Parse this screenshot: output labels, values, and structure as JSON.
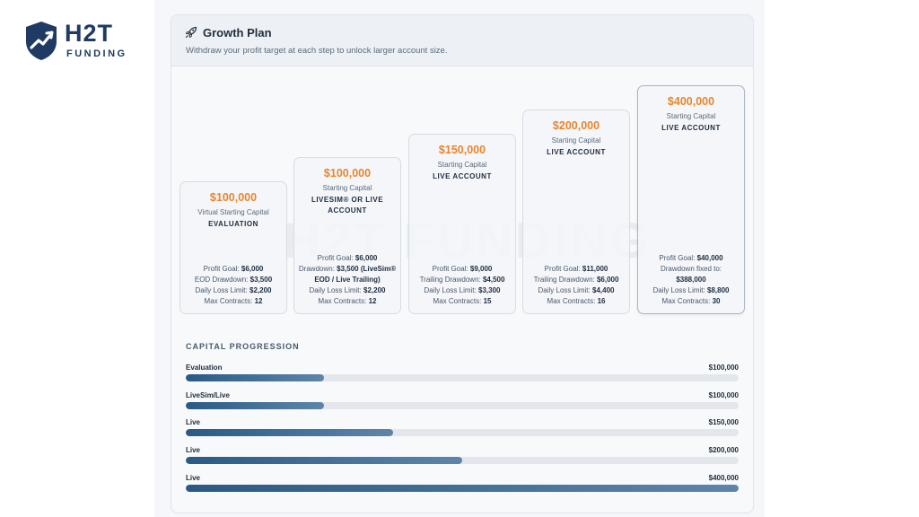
{
  "logo": {
    "line1": "H2T",
    "line2": "FUNDING",
    "icon": "shield-chart-icon"
  },
  "plan": {
    "title": "Growth Plan",
    "title_icon": "rocket-icon",
    "subtitle": "Withdraw your profit target at each step to unlock larger account size.",
    "watermark": "H2T FUNDING",
    "accent_color": "#e7862d",
    "stages": [
      {
        "amount": "$100,000",
        "caption": "Virtual Starting Capital",
        "type": "EVALUATION",
        "details": [
          {
            "label": "Profit Goal:",
            "value": "$6,000"
          },
          {
            "label": "EOD Drawdown:",
            "value": "$3,500"
          },
          {
            "label": "Daily Loss Limit:",
            "value": "$2,200"
          },
          {
            "label": "Max Contracts:",
            "value": "12"
          }
        ]
      },
      {
        "amount": "$100,000",
        "caption": "Starting Capital",
        "type": "LIVESIM® OR LIVE ACCOUNT",
        "details": [
          {
            "label": "Profit Goal:",
            "value": "$6,000"
          },
          {
            "label": "Drawdown:",
            "value": "$3,500 (LiveSim® EOD / Live Trailing)"
          },
          {
            "label": "Daily Loss Limit:",
            "value": "$2,200"
          },
          {
            "label": "Max Contracts:",
            "value": "12"
          }
        ]
      },
      {
        "amount": "$150,000",
        "caption": "Starting Capital",
        "type": "LIVE ACCOUNT",
        "details": [
          {
            "label": "Profit Goal:",
            "value": "$9,000"
          },
          {
            "label": "Trailing Drawdown:",
            "value": "$4,500"
          },
          {
            "label": "Daily Loss Limit:",
            "value": "$3,300"
          },
          {
            "label": "Max Contracts:",
            "value": "15"
          }
        ]
      },
      {
        "amount": "$200,000",
        "caption": "Starting Capital",
        "type": "LIVE ACCOUNT",
        "details": [
          {
            "label": "Profit Goal:",
            "value": "$11,000"
          },
          {
            "label": "Trailing Drawdown:",
            "value": "$6,000"
          },
          {
            "label": "Daily Loss Limit:",
            "value": "$4,400"
          },
          {
            "label": "Max Contracts:",
            "value": "16"
          }
        ]
      },
      {
        "amount": "$400,000",
        "caption": "Starting Capital",
        "type": "LIVE ACCOUNT",
        "details": [
          {
            "label": "Profit Goal:",
            "value": "$40,000"
          },
          {
            "label": "Drawdown fixed to:",
            "value": "$388,000"
          },
          {
            "label": "Daily Loss Limit:",
            "value": "$8,800"
          },
          {
            "label": "Max Contracts:",
            "value": "30"
          }
        ]
      }
    ]
  },
  "progression": {
    "title": "CAPITAL PROGRESSION",
    "rows": [
      {
        "label": "Evaluation",
        "value": "$100,000",
        "fill_percent": 25
      },
      {
        "label": "LiveSim/Live",
        "value": "$100,000",
        "fill_percent": 25
      },
      {
        "label": "Live",
        "value": "$150,000",
        "fill_percent": 37.5
      },
      {
        "label": "Live",
        "value": "$200,000",
        "fill_percent": 50
      },
      {
        "label": "Live",
        "value": "$400,000",
        "fill_percent": 100
      }
    ]
  }
}
